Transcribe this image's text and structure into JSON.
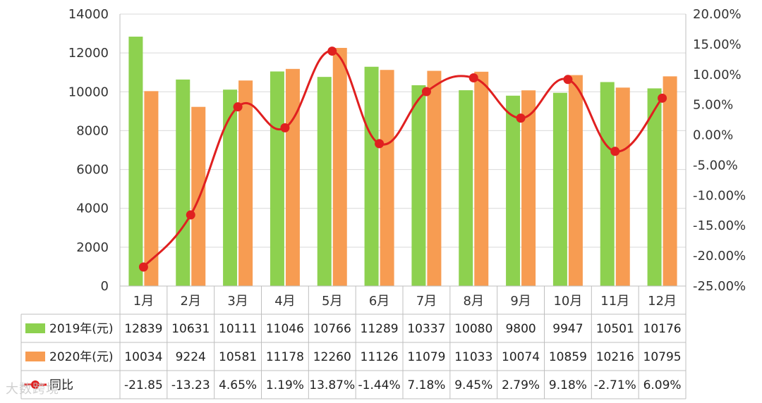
{
  "chart_data": {
    "type": "bar",
    "categories": [
      "1月",
      "2月",
      "3月",
      "4月",
      "5月",
      "6月",
      "7月",
      "8月",
      "9月",
      "10月",
      "11月",
      "12月"
    ],
    "series": [
      {
        "name": "2019年(元)",
        "type": "bar",
        "color": "#8DD14F",
        "values": [
          12839,
          10631,
          10111,
          11046,
          10766,
          11289,
          10337,
          10080,
          9800,
          9947,
          10501,
          10176
        ],
        "table_values": [
          "12839",
          "10631",
          "10111",
          "11046",
          "10766",
          "11289",
          "10337",
          "10080",
          "9800",
          "9947",
          "10501",
          "10176"
        ]
      },
      {
        "name": "2020年(元)",
        "type": "bar",
        "color": "#F79C52",
        "values": [
          10034,
          9224,
          10581,
          11178,
          12260,
          11126,
          11079,
          11033,
          10074,
          10859,
          10216,
          10795
        ],
        "table_values": [
          "10034",
          "9224",
          "10581",
          "11178",
          "12260",
          "11126",
          "11079",
          "11033",
          "10074",
          "10859",
          "10216",
          "10795"
        ]
      },
      {
        "name": "同比",
        "type": "line",
        "axis": "right",
        "color": "#E02020",
        "values": [
          -21.85,
          -13.23,
          4.65,
          1.19,
          13.87,
          -1.44,
          7.18,
          9.45,
          2.79,
          9.18,
          -2.71,
          6.09
        ],
        "table_values": [
          "-21.85",
          "-13.23",
          "4.65%",
          "1.19%",
          "13.87%",
          "-1.44%",
          "7.18%",
          "9.45%",
          "2.79%",
          "9.18%",
          "-2.71%",
          "6.09%"
        ]
      }
    ],
    "y_left": {
      "min": 0,
      "max": 14000,
      "step": 2000,
      "ticks": [
        "0",
        "2000",
        "4000",
        "6000",
        "8000",
        "10000",
        "12000",
        "14000"
      ]
    },
    "y_right": {
      "min": -25,
      "max": 20,
      "step": 5,
      "ticks": [
        "-25.00%",
        "-20.00%",
        "-15.00%",
        "-10.00%",
        "-5.00%",
        "0.00%",
        "5.00%",
        "10.00%",
        "15.00%",
        "20.00%"
      ]
    },
    "grid": true,
    "legend": "data-table"
  },
  "watermark": "大数跨境"
}
